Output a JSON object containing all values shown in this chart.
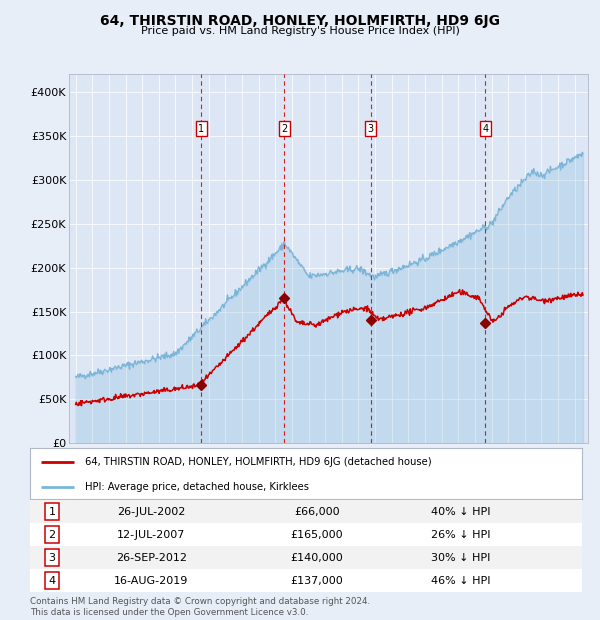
{
  "title": "64, THIRSTIN ROAD, HONLEY, HOLMFIRTH, HD9 6JG",
  "subtitle": "Price paid vs. HM Land Registry's House Price Index (HPI)",
  "background_color": "#e8eef8",
  "plot_bg_color": "#dce6f5",
  "hpi_color": "#7ab5d8",
  "price_color": "#cc0000",
  "sale_marker_color": "#8b0000",
  "vline_color": "#cc0000",
  "ylim": [
    0,
    420000
  ],
  "yticks": [
    0,
    50000,
    100000,
    150000,
    200000,
    250000,
    300000,
    350000,
    400000
  ],
  "ytick_labels": [
    "£0",
    "£50K",
    "£100K",
    "£150K",
    "£200K",
    "£250K",
    "£300K",
    "£350K",
    "£400K"
  ],
  "sales": [
    {
      "label": "1",
      "date": 2002.55,
      "price": 66000,
      "hpi_pct": "40% ↓ HPI",
      "date_str": "26-JUL-2002",
      "price_str": "£66,000"
    },
    {
      "label": "2",
      "date": 2007.53,
      "price": 165000,
      "hpi_pct": "26% ↓ HPI",
      "date_str": "12-JUL-2007",
      "price_str": "£165,000"
    },
    {
      "label": "3",
      "date": 2012.73,
      "price": 140000,
      "hpi_pct": "30% ↓ HPI",
      "date_str": "26-SEP-2012",
      "price_str": "£140,000"
    },
    {
      "label": "4",
      "date": 2019.62,
      "price": 137000,
      "hpi_pct": "46% ↓ HPI",
      "date_str": "16-AUG-2019",
      "price_str": "£137,000"
    }
  ],
  "legend_red_label": "64, THIRSTIN ROAD, HONLEY, HOLMFIRTH, HD9 6JG (detached house)",
  "legend_blue_label": "HPI: Average price, detached house, Kirklees",
  "footer": "Contains HM Land Registry data © Crown copyright and database right 2024.\nThis data is licensed under the Open Government Licence v3.0."
}
